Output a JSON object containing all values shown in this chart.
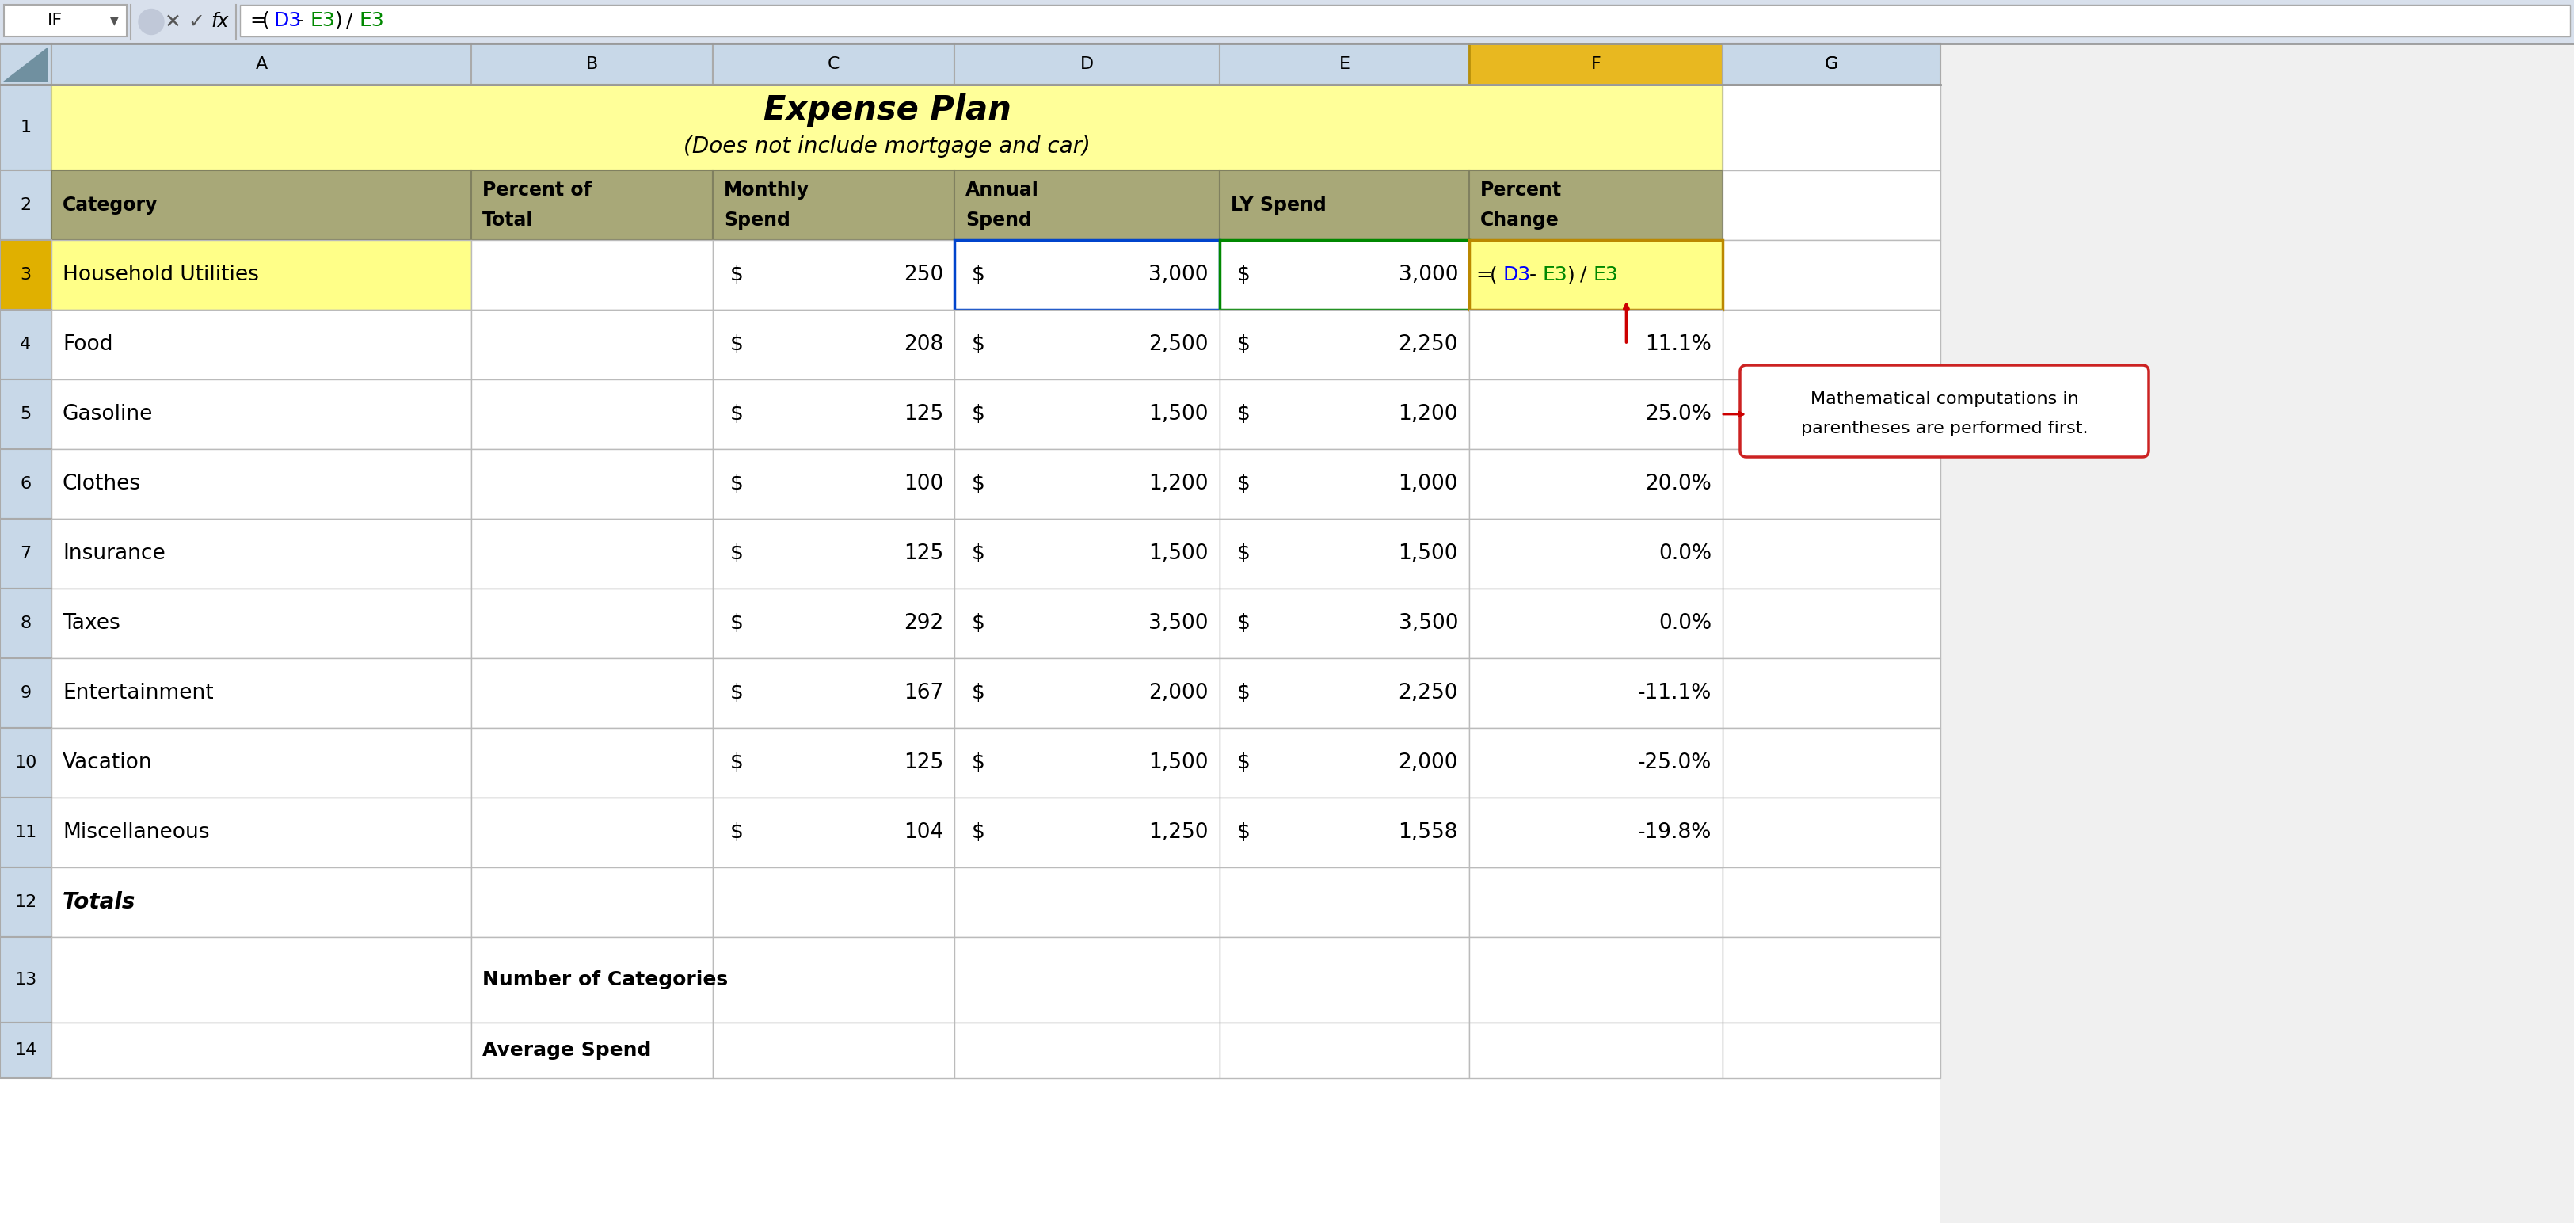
{
  "title": "Expense Plan",
  "subtitle": "(Does not include mortgage and car)",
  "formula_bar_cell": "IF",
  "col_letters": [
    "A",
    "B",
    "C",
    "D",
    "E",
    "F",
    "G"
  ],
  "headers": [
    "Category",
    "Percent of\nTotal",
    "Monthly\nSpend",
    "Annual\nSpend",
    "LY Spend",
    "Percent\nChange"
  ],
  "categories": [
    "Household Utilities",
    "Food",
    "Gasoline",
    "Clothes",
    "Insurance",
    "Taxes",
    "Entertainment",
    "Vacation",
    "Miscellaneous"
  ],
  "monthly": [
    250,
    208,
    125,
    100,
    125,
    292,
    167,
    125,
    104
  ],
  "annual": [
    3000,
    2500,
    1500,
    1200,
    1500,
    3500,
    2000,
    1500,
    1250
  ],
  "ly_spend": [
    3000,
    2250,
    1200,
    1000,
    1500,
    3500,
    2250,
    2000,
    1558
  ],
  "pct_changes": [
    "11.1%",
    "25.0%",
    "20.0%",
    "0.0%",
    "0.0%",
    "-11.1%",
    "-25.0%",
    "-19.8%"
  ],
  "totals_label": "Totals",
  "num_categories_label": "Number of Categories",
  "avg_spend_label": "Average Spend",
  "title_bg": "#FFFF99",
  "header_row_bg": "#A8A878",
  "header_row_border": "#808060",
  "col_hdr_bg": "#C8D8E8",
  "col_hdr_selected_bg": "#E8B820",
  "row_hdr_bg": "#C8D8E8",
  "row3_bg": "#FFFF88",
  "row3_num_bg": "#E0B000",
  "cell_border": "#BBBBBB",
  "heavy_border": "#999999",
  "blue_ref": "#0000FF",
  "green_ref": "#008800",
  "red_arrow": "#CC0000",
  "ann_border": "#CC2222",
  "white": "#FFFFFF",
  "black": "#000000",
  "formula_bar_bg": "#FFFFFF"
}
